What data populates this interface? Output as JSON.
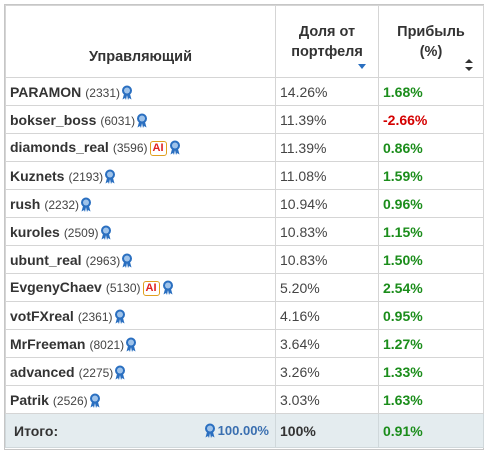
{
  "headers": {
    "manager": "Управляющий",
    "share_line1": "Доля от",
    "share_line2": "портфеля",
    "profit_line1": "Прибыль",
    "profit_line2": "(%)"
  },
  "rows": [
    {
      "name": "PARAMON",
      "rating": "(2331)",
      "ai": false,
      "share": "14.26%",
      "profit": "1.68%",
      "positive": true
    },
    {
      "name": "bokser_boss",
      "rating": "(6031)",
      "ai": false,
      "share": "11.39%",
      "profit": "-2.66%",
      "positive": false
    },
    {
      "name": "diamonds_real",
      "rating": "(3596)",
      "ai": true,
      "share": "11.39%",
      "profit": "0.86%",
      "positive": true
    },
    {
      "name": "Kuznets",
      "rating": "(2193)",
      "ai": false,
      "share": "11.08%",
      "profit": "1.59%",
      "positive": true
    },
    {
      "name": "rush",
      "rating": "(2232)",
      "ai": false,
      "share": "10.94%",
      "profit": "0.96%",
      "positive": true
    },
    {
      "name": "kuroles",
      "rating": "(2509)",
      "ai": false,
      "share": "10.83%",
      "profit": "1.15%",
      "positive": true
    },
    {
      "name": "ubunt_real",
      "rating": "(2963)",
      "ai": false,
      "share": "10.83%",
      "profit": "1.50%",
      "positive": true
    },
    {
      "name": "EvgenyChaev",
      "rating": "(5130)",
      "ai": true,
      "share": "5.20%",
      "profit": "2.54%",
      "positive": true
    },
    {
      "name": "votFXreal",
      "rating": "(2361)",
      "ai": false,
      "share": "4.16%",
      "profit": "0.95%",
      "positive": true
    },
    {
      "name": "MrFreeman",
      "rating": "(8021)",
      "ai": false,
      "share": "3.64%",
      "profit": "1.27%",
      "positive": true
    },
    {
      "name": "advanced",
      "rating": "(2275)",
      "ai": false,
      "share": "3.26%",
      "profit": "1.33%",
      "positive": true
    },
    {
      "name": "Patrik",
      "rating": "(2526)",
      "ai": false,
      "share": "3.03%",
      "profit": "1.63%",
      "positive": true
    }
  ],
  "ai_badge": "AI",
  "total": {
    "label": "Итого:",
    "medal_sum": "100.00%",
    "share": "100%",
    "profit": "0.91%"
  },
  "icons": {
    "medal": "medal-icon",
    "sort_desc": "sort-desc-icon",
    "sort_both": "sort-both-icon"
  },
  "colors": {
    "positive": "#1b8d1b",
    "negative": "#d40000",
    "total_bg": "#e4ecef",
    "medal": "#2a6fc0",
    "ai_badge": "#e02020"
  }
}
